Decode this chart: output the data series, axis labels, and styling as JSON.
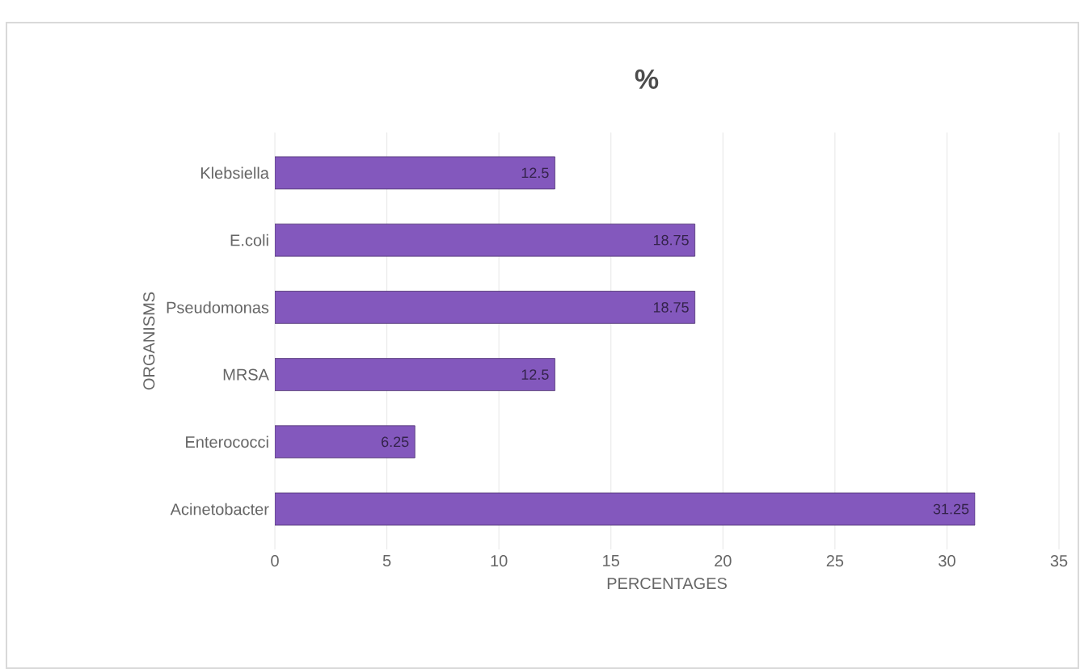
{
  "chart_data": {
    "type": "bar",
    "orientation": "horizontal",
    "title": "%",
    "xlabel": "PERCENTAGES",
    "ylabel": "ORGANISMS",
    "categories": [
      "Klebsiella",
      "E.coli",
      "Pseudomonas",
      "MRSA",
      "Enterococci",
      "Acinetobacter"
    ],
    "values": [
      12.5,
      18.75,
      18.75,
      12.5,
      6.25,
      31.25
    ],
    "color": "#8358bd",
    "xlim": [
      0,
      35
    ],
    "xticks": [
      0,
      5,
      10,
      15,
      20,
      25,
      30,
      35
    ],
    "grid": "x",
    "data_labels": true
  }
}
